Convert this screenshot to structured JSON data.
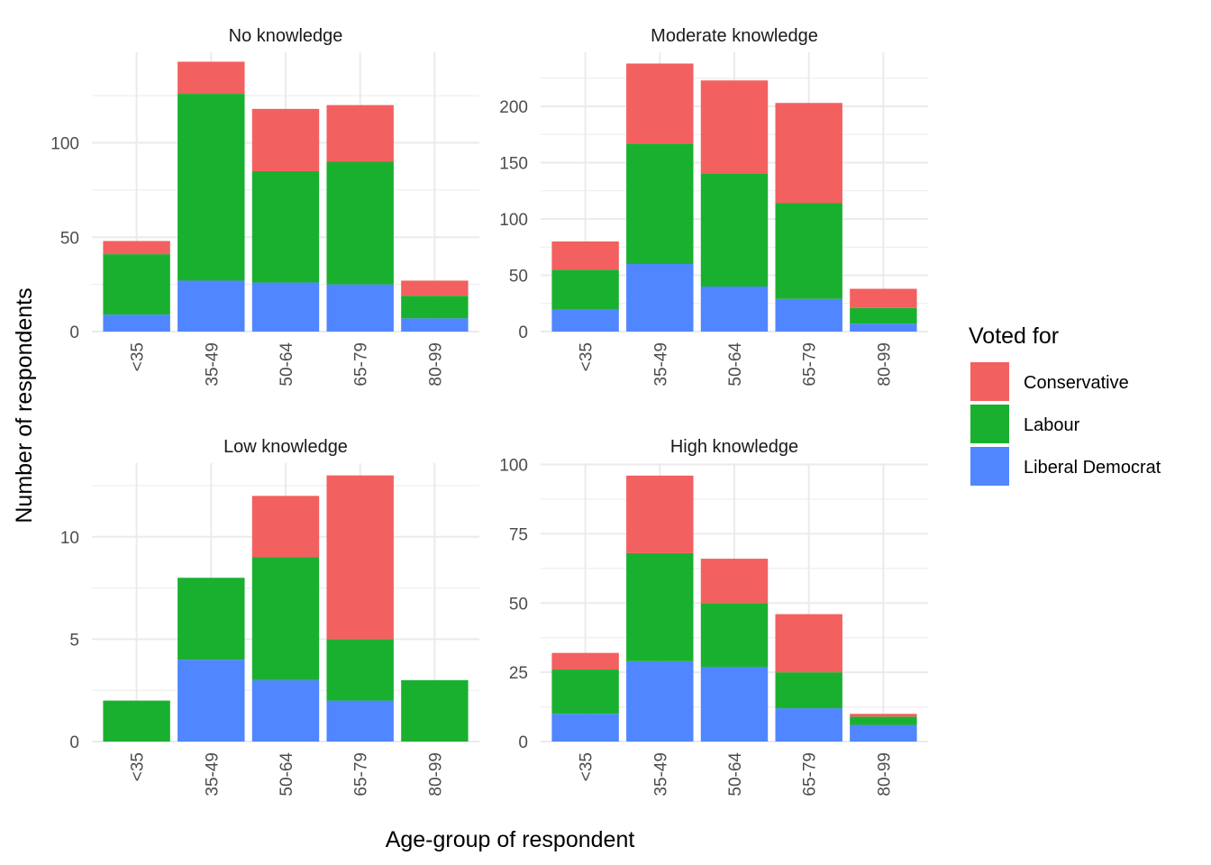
{
  "chart_data": {
    "type": "bar",
    "stacked": true,
    "xlabel": "Age-group of respondent",
    "ylabel": "Number of respondents",
    "legend": {
      "title": "Voted for",
      "placement": "right",
      "entries": [
        {
          "name": "Conservative",
          "color": "#F36060"
        },
        {
          "name": "Labour",
          "color": "#1AB02F"
        },
        {
          "name": "Liberal Democrat",
          "color": "#5086FF"
        }
      ]
    },
    "categories": [
      "<35",
      "35-49",
      "50-64",
      "65-79",
      "80-99"
    ],
    "grid": true,
    "panels": [
      {
        "title": "No knowledge",
        "ylim": [
          0,
          148
        ],
        "yticks": [
          0,
          50,
          100
        ],
        "series": [
          {
            "name": "Liberal Democrat",
            "values": [
              9,
              27,
              26,
              25,
              7
            ]
          },
          {
            "name": "Labour",
            "values": [
              32,
              99,
              59,
              65,
              12
            ]
          },
          {
            "name": "Conservative",
            "values": [
              7,
              17,
              33,
              30,
              8
            ]
          }
        ]
      },
      {
        "title": "Moderate knowledge",
        "ylim": [
          0,
          248
        ],
        "yticks": [
          0,
          50,
          100,
          150,
          200
        ],
        "series": [
          {
            "name": "Liberal Democrat",
            "values": [
              20,
              60,
              40,
              29,
              7
            ]
          },
          {
            "name": "Labour",
            "values": [
              35,
              107,
              100,
              85,
              14
            ]
          },
          {
            "name": "Conservative",
            "values": [
              25,
              71,
              83,
              89,
              17
            ]
          }
        ]
      },
      {
        "title": "Low knowledge",
        "ylim": [
          0,
          13.6
        ],
        "yticks": [
          0,
          5,
          10
        ],
        "series": [
          {
            "name": "Liberal Democrat",
            "values": [
              0,
              4,
              3,
              2,
              0
            ]
          },
          {
            "name": "Labour",
            "values": [
              2,
              4,
              6,
              3,
              3
            ]
          },
          {
            "name": "Conservative",
            "values": [
              0,
              0,
              3,
              8,
              0
            ]
          }
        ]
      },
      {
        "title": "High knowledge",
        "ylim": [
          0,
          100.5
        ],
        "yticks": [
          0,
          25,
          50,
          75,
          100
        ],
        "series": [
          {
            "name": "Liberal Democrat",
            "values": [
              10,
              29,
              27,
              12,
              6
            ]
          },
          {
            "name": "Labour",
            "values": [
              16,
              39,
              23,
              13,
              3
            ]
          },
          {
            "name": "Conservative",
            "values": [
              6,
              28,
              16,
              21,
              1
            ]
          }
        ]
      }
    ]
  }
}
